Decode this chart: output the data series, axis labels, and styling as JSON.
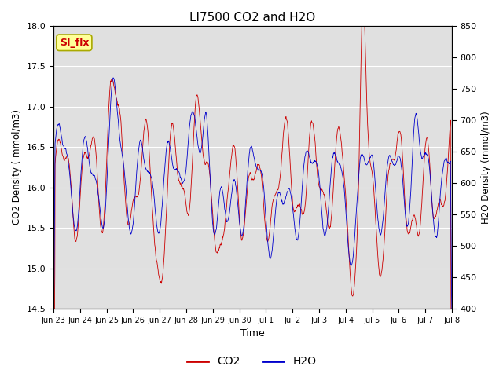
{
  "title": "LI7500 CO2 and H2O",
  "xlabel": "Time",
  "ylabel_left": "CO2 Density ( mmol/m3)",
  "ylabel_right": "H2O Density (mmol/m3)",
  "co2_ylim": [
    14.5,
    18.0
  ],
  "h2o_ylim": [
    400,
    850
  ],
  "co2_color": "#cc0000",
  "h2o_color": "#0000cc",
  "background_color": "#ffffff",
  "plot_bg_color": "#e0e0e0",
  "annotation_text": "SI_flx",
  "annotation_bg": "#ffff99",
  "annotation_edge": "#aaaa00",
  "legend_co2": "CO2",
  "legend_h2o": "H2O",
  "tick_labels": [
    "Jun 23",
    "Jun 24",
    "Jun 25",
    "Jun 26",
    "Jun 27",
    "Jun 28",
    "Jun 29",
    "Jun 30",
    "Jul 1",
    "Jul 2",
    "Jul 3",
    "Jul 4",
    "Jul 5",
    "Jul 6",
    "Jul 7",
    "Jul 8"
  ],
  "num_points": 1500,
  "start_day": 0,
  "end_day": 15.0,
  "seed": 42
}
